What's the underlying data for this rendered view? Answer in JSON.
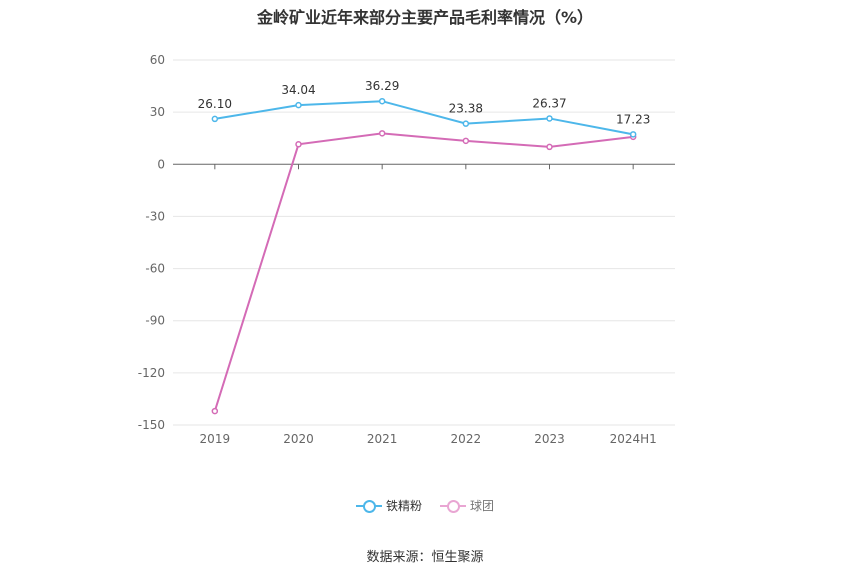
{
  "title": "金岭矿业近年来部分主要产品毛利率情况（%）",
  "source": "数据来源：恒生聚源",
  "chart_data": {
    "type": "line",
    "categories": [
      "2019",
      "2020",
      "2021",
      "2022",
      "2023",
      "2024H1"
    ],
    "series": [
      {
        "name": "铁精粉",
        "color": "#4db7ea",
        "values": [
          26.1,
          34.04,
          36.29,
          23.38,
          26.37,
          17.23
        ],
        "labels": [
          "26.10",
          "34.04",
          "36.29",
          "23.38",
          "26.37",
          "17.23"
        ]
      },
      {
        "name": "球团",
        "color": "#d46bb6",
        "values": [
          -142,
          11.5,
          17.8,
          13.5,
          10,
          15.8
        ]
      }
    ],
    "yticks": [
      60,
      30,
      0,
      -30,
      -60,
      -90,
      -120,
      -150
    ],
    "ylim": [
      -150,
      60
    ],
    "grid": true,
    "legend_position": "bottom"
  }
}
